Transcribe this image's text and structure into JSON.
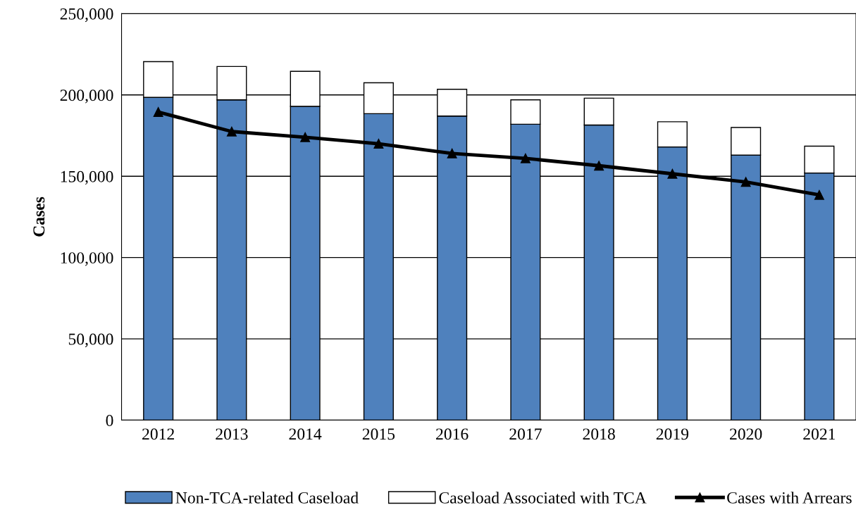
{
  "chart_data": {
    "type": "bar",
    "stacked": true,
    "ylabel": "Cases",
    "categories": [
      "2012",
      "2013",
      "2014",
      "2015",
      "2016",
      "2017",
      "2018",
      "2019",
      "2020",
      "2021"
    ],
    "series": [
      {
        "name": "Non-TCA-related Caseload",
        "color": "#4f81bd",
        "values": [
          198500,
          197000,
          193000,
          188500,
          187000,
          182000,
          181500,
          168000,
          163000,
          152000
        ]
      },
      {
        "name": "Caseload Associated with TCA",
        "color": "#ffffff",
        "values": [
          22000,
          20500,
          21500,
          19000,
          16500,
          15000,
          16500,
          15500,
          17000,
          16500
        ]
      },
      {
        "name": "Cases with Arrears",
        "type": "line",
        "color": "#000000",
        "marker": "triangle",
        "values": [
          189500,
          177500,
          174000,
          170000,
          164000,
          161000,
          156500,
          151500,
          146500,
          138500
        ]
      }
    ],
    "ylim": [
      0,
      250000
    ],
    "yticks": [
      {
        "value": 0,
        "label": "0"
      },
      {
        "value": 50000,
        "label": "50,000"
      },
      {
        "value": 100000,
        "label": "100,000"
      },
      {
        "value": 150000,
        "label": "150,000"
      },
      {
        "value": 200000,
        "label": "200,000"
      },
      {
        "value": 250000,
        "label": "250,000"
      }
    ],
    "grid": "y",
    "legend": "bottom"
  }
}
